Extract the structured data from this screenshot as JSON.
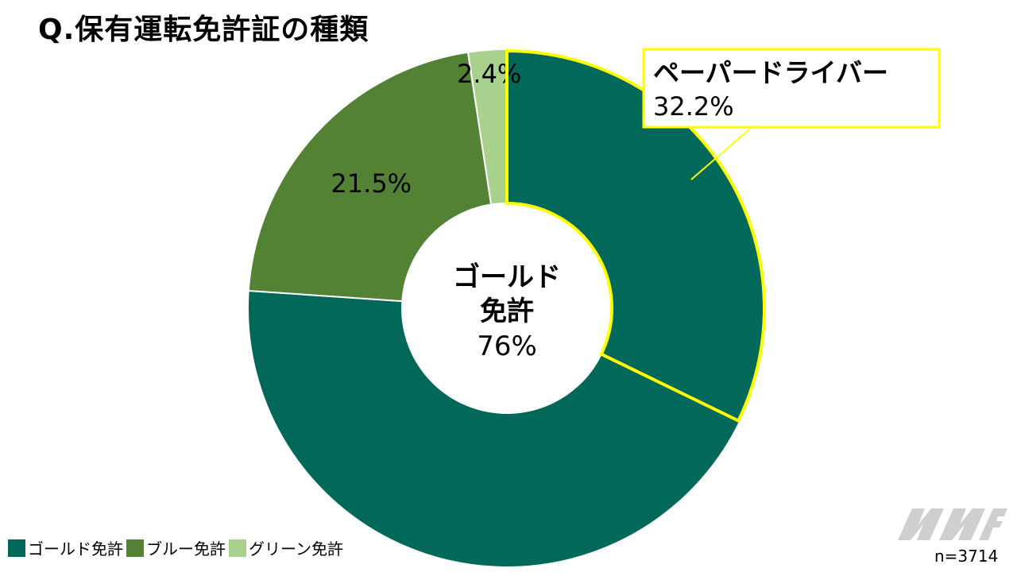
{
  "title": "Q.保有運転免許証の種類",
  "chart_data": {
    "type": "pie",
    "variant": "donut",
    "slices": [
      {
        "name": "ゴールド免許",
        "value": 76,
        "color": "#02685A"
      },
      {
        "name": "ブルー免許",
        "value": 21.5,
        "color": "#548235"
      },
      {
        "name": "グリーン免許",
        "value": 2.4,
        "color": "#A9D18E"
      }
    ],
    "slice_labels": [
      "",
      "21.5%",
      "2.4%"
    ],
    "center_label": [
      "ゴールド",
      "免許",
      "76%"
    ],
    "highlight": {
      "name": "ペーパードライバー",
      "value": 32.2,
      "label": "32.2%",
      "color": "#FFFF00"
    },
    "legend": {
      "placement": "bottom-left",
      "items": [
        "ゴールド免許",
        "ブルー免許",
        "グリーン免許"
      ]
    },
    "sample_size": "n=3714"
  }
}
